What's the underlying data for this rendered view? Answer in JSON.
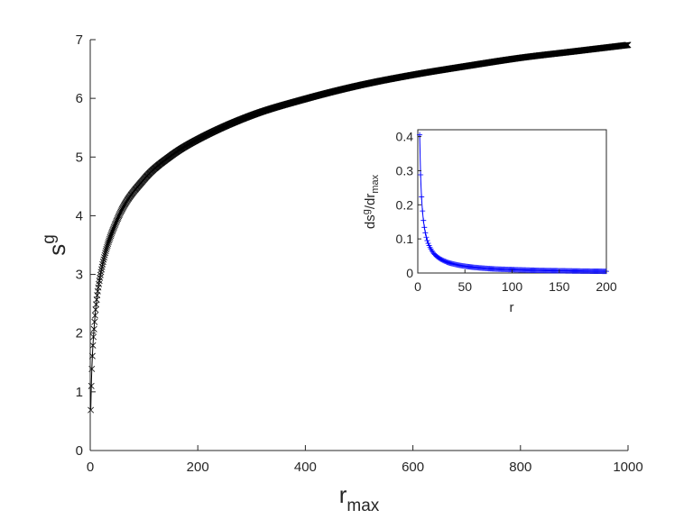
{
  "chart_data": [
    {
      "type": "line",
      "marker": "x",
      "color": "#000000",
      "xlabel": {
        "base": "r",
        "sub": "max"
      },
      "ylabel": {
        "base": "s",
        "sup": "g"
      },
      "xlim": [
        0,
        1000
      ],
      "ylim": [
        0,
        7
      ],
      "xticks": [
        "0",
        "200",
        "400",
        "600",
        "800",
        "1000"
      ],
      "yticks": [
        "0",
        "1",
        "2",
        "3",
        "4",
        "5",
        "6",
        "7"
      ],
      "grid": false,
      "series": [
        {
          "x": [
            1,
            2,
            3,
            4,
            5,
            10,
            20,
            50,
            100,
            150,
            200,
            300,
            400,
            500,
            600,
            700,
            800,
            900,
            1000
          ],
          "y": [
            0.69,
            1.1,
            1.39,
            1.61,
            1.79,
            2.4,
            3.04,
            3.93,
            4.62,
            5.02,
            5.3,
            5.71,
            5.99,
            6.22,
            6.4,
            6.55,
            6.69,
            6.8,
            6.91
          ]
        }
      ]
    },
    {
      "type": "line",
      "marker": "+",
      "color": "#0000ff",
      "inset": true,
      "xlabel": {
        "base": "r"
      },
      "ylabel": {
        "num_base": "ds",
        "num_sup": "g",
        "den_base": "/dr",
        "den_sub": "max"
      },
      "xlim": [
        0,
        200
      ],
      "ylim": [
        0,
        0.42
      ],
      "xticks": [
        "0",
        "50",
        "100",
        "150",
        "200"
      ],
      "yticks": [
        "0",
        "0.1",
        "0.2",
        "0.3",
        "0.4"
      ],
      "grid": false,
      "series": [
        {
          "x": [
            2,
            3,
            4,
            5,
            6,
            8,
            10,
            15,
            20,
            30,
            40,
            50,
            75,
            100,
            125,
            150,
            175,
            200
          ],
          "y": [
            0.405,
            0.288,
            0.223,
            0.182,
            0.154,
            0.118,
            0.095,
            0.065,
            0.049,
            0.033,
            0.025,
            0.02,
            0.013,
            0.01,
            0.008,
            0.0067,
            0.0057,
            0.005
          ]
        }
      ]
    }
  ]
}
